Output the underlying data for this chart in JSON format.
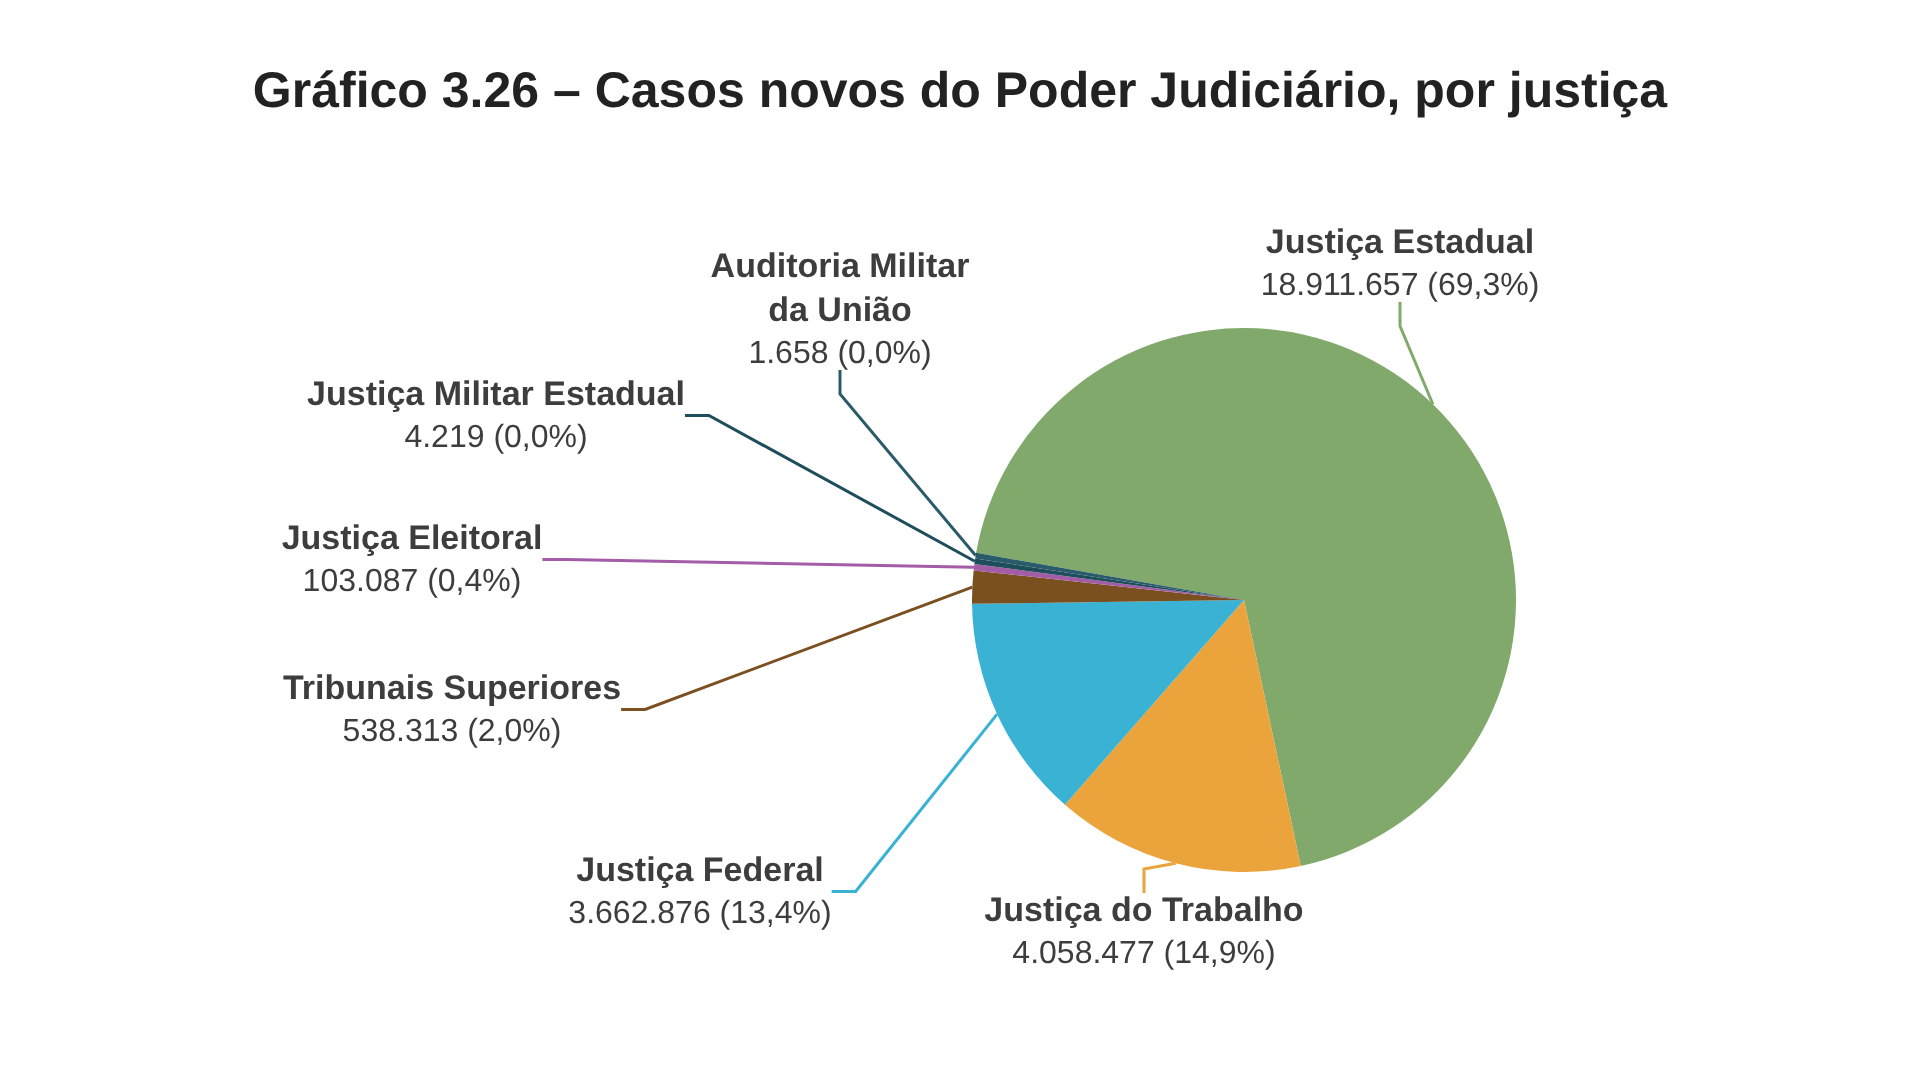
{
  "chart_data": {
    "type": "pie",
    "title": "Gráfico 3.26 – Casos novos do Poder Judiciário, por justiça",
    "categories": [
      "Justiça Estadual",
      "Justiça do Trabalho",
      "Justiça Federal",
      "Tribunais Superiores",
      "Justiça Eleitoral",
      "Justiça Militar Estadual",
      "Auditoria Militar da União"
    ],
    "values": [
      18911657,
      4058477,
      3662876,
      538313,
      103087,
      4219,
      1658
    ],
    "colors": [
      "#80a96b",
      "#eba43c",
      "#39b2d3",
      "#7b5020",
      "#a35ca6",
      "#1e4d5c",
      "#2a5b6a"
    ],
    "value_labels": [
      "18.911.657 (69,3%)",
      "4.058.477 (14,9%)",
      "3.662.876 (13,4%)",
      "538.313 (2,0%)",
      "103.087 (0,4%)",
      "4.219 (0,0%)",
      "1.658 (0,0%)"
    ]
  }
}
